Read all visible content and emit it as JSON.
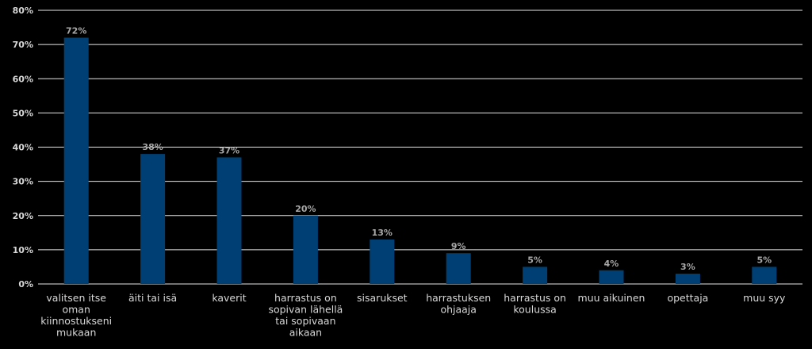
{
  "chart_data": {
    "type": "bar",
    "categories": [
      [
        "valitsen itse",
        "oman",
        "kiinnostukseni",
        "mukaan"
      ],
      [
        "äiti tai isä"
      ],
      [
        "kaverit"
      ],
      [
        "harrastus on",
        "sopivan lähellä",
        "tai sopivaan",
        "aikaan"
      ],
      [
        "sisarukset"
      ],
      [
        "harrastuksen",
        "ohjaaja"
      ],
      [
        "harrastus on",
        "koulussa"
      ],
      [
        "muu aikuinen"
      ],
      [
        "opettaja"
      ],
      [
        "muu syy"
      ]
    ],
    "values": [
      72,
      38,
      37,
      20,
      13,
      9,
      5,
      4,
      3,
      5
    ],
    "data_labels": [
      "72%",
      "38%",
      "37%",
      "20%",
      "13%",
      "9%",
      "5%",
      "4%",
      "3%",
      "5%"
    ],
    "ylim": [
      0,
      80
    ],
    "yticks": [
      0,
      10,
      20,
      30,
      40,
      50,
      60,
      70,
      80
    ],
    "ytick_labels": [
      "0%",
      "10%",
      "20%",
      "30%",
      "40%",
      "50%",
      "60%",
      "70%",
      "80%"
    ],
    "grid": true,
    "colors": {
      "bar": "#003f73",
      "grid": "#e6e6e6",
      "background": "#000000"
    }
  }
}
